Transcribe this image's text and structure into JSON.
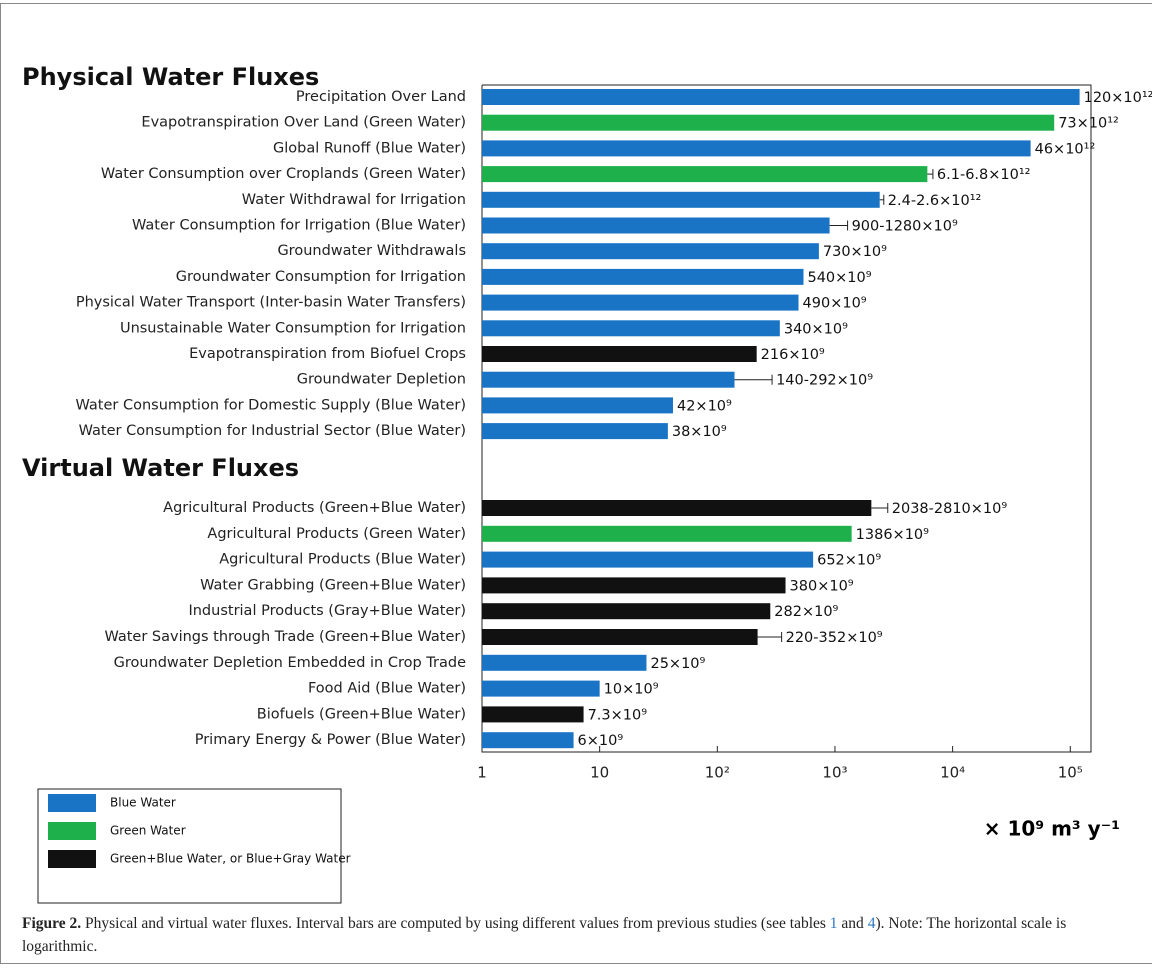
{
  "chart_data": {
    "type": "bar",
    "log_x": true,
    "xlim": [
      1,
      150000
    ],
    "xticks": [
      1,
      10,
      {
        "value": 100,
        "label": "10²"
      },
      {
        "value": 1000,
        "label": "10³"
      },
      {
        "value": 10000,
        "label": "10⁴"
      },
      {
        "value": 100000,
        "label": "10⁵"
      }
    ],
    "xlabel": "× 10⁹ m³ y⁻¹",
    "legend": [
      {
        "name": "Blue Water",
        "color": "#1a74c6"
      },
      {
        "name": "Green Water",
        "color": "#1eb14b"
      },
      {
        "name": "Green+Blue Water, or Blue+Gray Water",
        "color": "#111111"
      }
    ],
    "sections": [
      {
        "title": "Physical Water Fluxes",
        "categories": [
          "Precipitation Over Land",
          "Evapotranspiration Over Land (Green Water)",
          "Global Runoff (Blue Water)",
          "Water Consumption over Croplands (Green Water)",
          "Water Withdrawal for Irrigation",
          "Water Consumption for Irrigation (Blue Water)",
          "Groundwater Withdrawals",
          "Groundwater Consumption for Irrigation",
          "Physical Water Transport (Inter-basin Water Transfers)",
          "Unsustainable Water Consumption for Irrigation",
          "Evapotranspiration from Biofuel Crops",
          "Groundwater Depletion",
          "Water Consumption for Domestic Supply (Blue Water)",
          "Water Consumption for Industrial Sector (Blue Water)"
        ],
        "values": [
          120000,
          73000,
          46000,
          6100,
          2400,
          900,
          730,
          540,
          490,
          340,
          216,
          140,
          42,
          38
        ],
        "upper": [
          null,
          null,
          null,
          6800,
          2600,
          1280,
          null,
          null,
          null,
          null,
          null,
          292,
          null,
          null
        ],
        "value_labels": [
          "120×10¹²",
          "73×10¹²",
          "46×10¹²",
          "6.1-6.8×10¹²",
          "2.4-2.6×10¹²",
          "900-1280×10⁹",
          "730×10⁹",
          "540×10⁹",
          "490×10⁹",
          "340×10⁹",
          "216×10⁹",
          "140-292×10⁹",
          "42×10⁹",
          "38×10⁹"
        ],
        "colors": [
          "#1a74c6",
          "#1eb14b",
          "#1a74c6",
          "#1eb14b",
          "#1a74c6",
          "#1a74c6",
          "#1a74c6",
          "#1a74c6",
          "#1a74c6",
          "#1a74c6",
          "#111111",
          "#1a74c6",
          "#1a74c6",
          "#1a74c6"
        ]
      },
      {
        "title": "Virtual Water Fluxes",
        "categories": [
          "Agricultural Products (Green+Blue Water)",
          "Agricultural Products (Green Water)",
          "Agricultural Products (Blue Water)",
          "Water Grabbing (Green+Blue Water)",
          "Industrial Products (Gray+Blue Water)",
          "Water Savings through Trade (Green+Blue Water)",
          "Groundwater Depletion Embedded in Crop Trade",
          "Food Aid (Blue Water)",
          "Biofuels (Green+Blue Water)",
          "Primary Energy & Power (Blue Water)"
        ],
        "values": [
          2038,
          1386,
          652,
          380,
          282,
          220,
          25,
          10,
          7.3,
          6
        ],
        "upper": [
          2810,
          null,
          null,
          null,
          null,
          352,
          null,
          null,
          null,
          null
        ],
        "value_labels": [
          "2038-2810×10⁹",
          "1386×10⁹",
          "652×10⁹",
          "380×10⁹",
          "282×10⁹",
          "220-352×10⁹",
          "25×10⁹",
          "10×10⁹",
          "7.3×10⁹",
          "6×10⁹"
        ],
        "colors": [
          "#111111",
          "#1eb14b",
          "#1a74c6",
          "#111111",
          "#111111",
          "#111111",
          "#1a74c6",
          "#1a74c6",
          "#111111",
          "#1a74c6"
        ]
      }
    ]
  },
  "caption": {
    "label": "Figure 2.",
    "parts": [
      "Physical and virtual water fluxes. Interval bars are computed by using different values from previous studies (see tables ",
      "1",
      " and ",
      "4",
      "). Note: The horizontal scale is logarithmic."
    ]
  }
}
